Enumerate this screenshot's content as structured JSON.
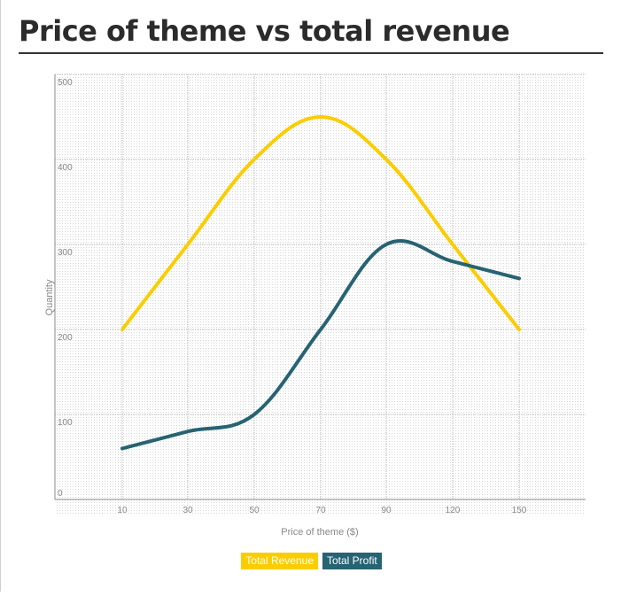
{
  "page": {
    "title": "Price of theme vs total revenue"
  },
  "colors": {
    "revenue": "#fbcd00",
    "profit": "#266373",
    "grid": "#b9b9b9",
    "axis": "#888888",
    "label": "#888888"
  },
  "chart_data": {
    "type": "line",
    "title": "",
    "xlabel": "Price of theme ($)",
    "ylabel": "Quantity",
    "x": [
      10,
      30,
      50,
      70,
      90,
      120,
      150
    ],
    "x_tick_labels": [
      "10",
      "30",
      "50",
      "70",
      "90",
      "120",
      "150"
    ],
    "y_ticks": [
      0,
      100,
      200,
      300,
      400,
      500
    ],
    "ylim": [
      0,
      500
    ],
    "grid": true,
    "legend_position": "bottom-center",
    "series": [
      {
        "name": "Total Revenue",
        "color": "#fbcd00",
        "values": [
          200,
          300,
          400,
          450,
          400,
          300,
          200
        ]
      },
      {
        "name": "Total Profit",
        "color": "#266373",
        "values": [
          60,
          80,
          100,
          200,
          300,
          280,
          260
        ]
      }
    ]
  }
}
